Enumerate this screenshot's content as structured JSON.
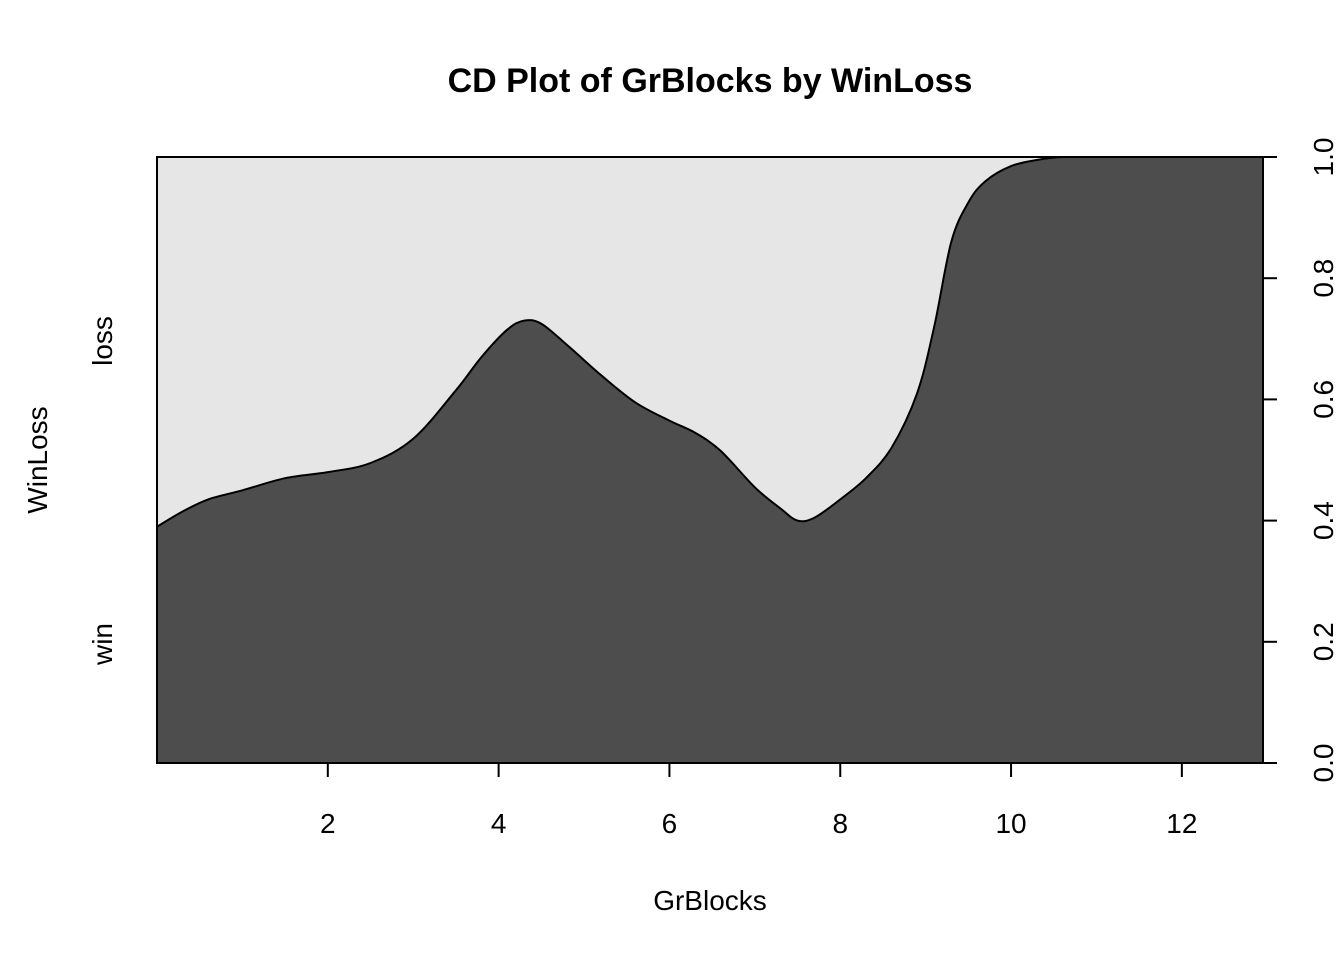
{
  "chart_data": {
    "type": "area",
    "subtype": "conditional-density",
    "title": "CD Plot of GrBlocks by WinLoss",
    "xlabel": "GrBlocks",
    "ylabel": "WinLoss",
    "xlim": [
      0.0,
      12.95
    ],
    "ylim": [
      0,
      1
    ],
    "x_ticks": [
      2,
      4,
      6,
      8,
      10,
      12
    ],
    "x_tick_labels": [
      "2",
      "4",
      "6",
      "8",
      "10",
      "12"
    ],
    "y_ticks_right": [
      0.0,
      0.2,
      0.4,
      0.6,
      0.8,
      1.0
    ],
    "y_tick_labels_right": [
      "0.0",
      "0.2",
      "0.4",
      "0.6",
      "0.8",
      "1.0"
    ],
    "categories": [
      "win",
      "loss"
    ],
    "colors": {
      "win": "#4d4d4d",
      "loss": "#e6e6e6"
    },
    "boundary": {
      "x": [
        0.0,
        0.3,
        0.6,
        1.0,
        1.5,
        2.0,
        2.5,
        3.0,
        3.5,
        3.8,
        4.1,
        4.3,
        4.5,
        4.8,
        5.2,
        5.6,
        6.0,
        6.3,
        6.6,
        7.0,
        7.3,
        7.5,
        7.7,
        8.0,
        8.3,
        8.6,
        8.9,
        9.1,
        9.3,
        9.5,
        9.7,
        10.0,
        10.3,
        10.6,
        11.0,
        12.0,
        12.95
      ],
      "y": [
        0.39,
        0.415,
        0.435,
        0.45,
        0.47,
        0.48,
        0.495,
        0.535,
        0.615,
        0.67,
        0.715,
        0.73,
        0.725,
        0.69,
        0.64,
        0.595,
        0.565,
        0.545,
        0.515,
        0.455,
        0.42,
        0.4,
        0.405,
        0.435,
        0.47,
        0.52,
        0.61,
        0.72,
        0.86,
        0.925,
        0.96,
        0.985,
        0.995,
        1.0,
        1.0,
        1.0,
        1.0
      ]
    }
  }
}
